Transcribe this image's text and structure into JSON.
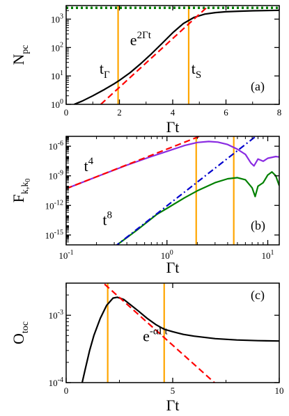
{
  "chart_data": [
    {
      "panel": "(a)",
      "type": "line",
      "xlabel_main": "Γ",
      "xlabel_sub": "t",
      "ylabel_main": "N",
      "ylabel_sub": "pc",
      "xscale": "linear",
      "yscale": "log",
      "xlim": [
        0,
        8
      ],
      "ylim": [
        1,
        3000
      ],
      "xticks": [
        0,
        2,
        4,
        6,
        8
      ],
      "xtick_labels": [
        "0",
        "2",
        "4",
        "6",
        "8"
      ],
      "yticks": [
        1,
        10,
        100,
        1000
      ],
      "ytick_bases": [
        "10",
        "10",
        "10",
        "10"
      ],
      "ytick_exps": [
        "0",
        "1",
        "2",
        "3"
      ],
      "vlines": [
        1.95,
        4.6
      ],
      "vline_color": "#ffa500",
      "series": [
        {
          "color": "#000000",
          "style": "solid",
          "x": [
            0.3,
            0.6,
            1.0,
            1.4,
            1.8,
            2.0,
            2.4,
            2.8,
            3.2,
            3.6,
            4.0,
            4.4,
            4.8,
            5.2,
            5.6,
            6.0,
            6.5,
            7.0,
            7.5,
            8.0
          ],
          "y": [
            1.0,
            1.3,
            2.0,
            3.2,
            5.3,
            7.0,
            13,
            27,
            60,
            140,
            330,
            700,
            1150,
            1500,
            1700,
            1820,
            1900,
            1960,
            2000,
            2040
          ]
        },
        {
          "color": "#ff0000",
          "style": "dashed",
          "x": [
            1.3,
            5.5
          ],
          "y": [
            1.0,
            4000
          ]
        },
        {
          "color": "#008000",
          "style": "dotted",
          "x": [
            0,
            8
          ],
          "y": [
            2500,
            2500
          ]
        }
      ],
      "annotations": [
        {
          "main": "e",
          "sup": "2Γt",
          "x": 2.4,
          "y": 120
        },
        {
          "main": "t",
          "sub": "Γ",
          "x": 1.25,
          "y": 12
        },
        {
          "main": "t",
          "sub": "S",
          "x": 4.7,
          "y": 12
        }
      ]
    },
    {
      "panel": "(b)",
      "type": "line",
      "xlabel_main": "Γ",
      "xlabel_sub": "t",
      "ylabel_main": "F",
      "ylabel_sub": "k,k",
      "ylabel_subsub": "0",
      "xscale": "log",
      "yscale": "log",
      "xlim": [
        0.1,
        13
      ],
      "ylim": [
        1e-16,
        1e-05
      ],
      "xticks": [
        0.1,
        1,
        10
      ],
      "xtick_bases": [
        "10",
        "10",
        "10"
      ],
      "xtick_exps": [
        "-1",
        "0",
        "1"
      ],
      "yticks": [
        1e-15,
        1e-12,
        1e-09,
        1e-06
      ],
      "ytick_bases": [
        "10",
        "10",
        "10",
        "10"
      ],
      "ytick_exps": [
        "-15",
        "-12",
        "-9",
        "-6"
      ],
      "vlines": [
        1.95,
        4.6
      ],
      "vline_color": "#ffa500",
      "series": [
        {
          "color": "#8a2be2",
          "style": "solid",
          "x": [
            0.1,
            0.2,
            0.4,
            0.7,
            1.0,
            1.5,
            2.0,
            2.6,
            3.2,
            4.0,
            5.0,
            6.0,
            6.8,
            7.3,
            8.0,
            9.0,
            10.0,
            12.0,
            13.0
          ],
          "y": [
            5e-11,
            8e-10,
            1.2e-08,
            9e-08,
            3e-07,
            1.2e-06,
            2.4e-06,
            3e-06,
            2.6e-06,
            1.5e-06,
            5e-07,
            1.5e-07,
            2e-08,
            1e-08,
            5e-08,
            3e-08,
            6e-08,
            9e-08,
            8e-08
          ]
        },
        {
          "color": "#008000",
          "style": "solid",
          "x": [
            0.32,
            0.5,
            0.8,
            1.0,
            1.5,
            2.0,
            3.0,
            4.0,
            5.0,
            6.0,
            7.0,
            7.5,
            8.0,
            9.0,
            10.0,
            11.0,
            12.0,
            13.0
          ],
          "y": [
            1e-16,
            3e-15,
            1.3e-13,
            5e-13,
            6e-12,
            3e-11,
            2e-10,
            5e-10,
            6.5e-10,
            4e-10,
            6e-11,
            8e-12,
            9e-11,
            2e-10,
            1.2e-09,
            2.5e-09,
            1e-09,
            1e-10
          ]
        },
        {
          "color": "#ff0000",
          "style": "dashed",
          "x": [
            0.1,
            2.2
          ],
          "y": [
            5e-11,
            1.2e-05
          ]
        },
        {
          "color": "#0000cd",
          "style": "dashdot",
          "x": [
            0.3,
            10
          ],
          "y": [
            6e-17,
            9e-05
          ]
        }
      ],
      "annotations": [
        {
          "main": "t",
          "sup": "4",
          "x": 0.15,
          "y": 3e-09
        },
        {
          "main": "t",
          "sup": "8",
          "x": 0.23,
          "y": 1e-14
        }
      ]
    },
    {
      "panel": "(c)",
      "type": "line",
      "xlabel_main": "Γ",
      "xlabel_sub": "t",
      "ylabel_main": "O",
      "ylabel_sub": "toc",
      "xscale": "linear",
      "yscale": "log",
      "xlim": [
        0,
        10
      ],
      "ylim": [
        0.0001,
        0.003
      ],
      "xticks": [
        0,
        5,
        10
      ],
      "xtick_labels": [
        "0",
        "5",
        "10"
      ],
      "yticks": [
        0.0001,
        0.001
      ],
      "ytick_bases": [
        "10",
        "10"
      ],
      "ytick_exps": [
        "-4",
        "-3"
      ],
      "vlines": [
        1.95,
        4.6
      ],
      "vline_color": "#ffa500",
      "series": [
        {
          "color": "#000000",
          "style": "solid",
          "x": [
            0.75,
            0.9,
            1.1,
            1.3,
            1.6,
            1.9,
            2.2,
            2.4,
            2.7,
            3.0,
            3.4,
            3.8,
            4.2,
            4.6,
            5.0,
            5.5,
            6.0,
            7.0,
            8.0,
            9.0,
            10.0
          ],
          "y": [
            0.0001,
            0.00016,
            0.0003,
            0.0005,
            0.0009,
            0.0014,
            0.0018,
            0.00185,
            0.00172,
            0.00145,
            0.00115,
            0.0009,
            0.00073,
            0.00062,
            0.00057,
            0.00052,
            0.00049,
            0.00045,
            0.00043,
            0.00042,
            0.000415
          ]
        },
        {
          "color": "#ff0000",
          "style": "dashed",
          "x": [
            1.8,
            7.3
          ],
          "y": [
            0.0029,
            8e-05
          ]
        }
      ],
      "annotations": [
        {
          "main": "e",
          "sup": "-αΓt",
          "x": 3.6,
          "y": 0.00041
        }
      ]
    }
  ]
}
